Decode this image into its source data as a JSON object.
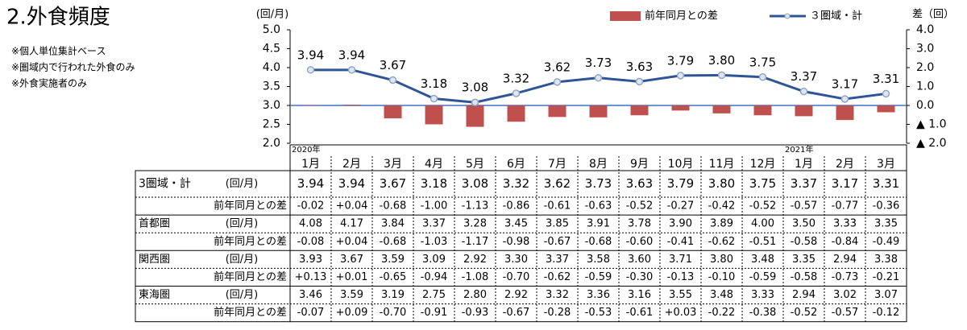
{
  "header": {
    "title": "2.外食頻度",
    "notes": [
      "※個人単位集計ベース",
      "※圏域内で行われた外食のみ",
      "※外食実施者のみ"
    ]
  },
  "chart_data": {
    "type": "bar-line",
    "ylabel": "(回/月)",
    "y2label": "差（回）",
    "categories": [
      "1月",
      "2月",
      "3月",
      "4月",
      "5月",
      "6月",
      "7月",
      "8月",
      "9月",
      "10月",
      "11月",
      "12月",
      "1月",
      "2月",
      "3月"
    ],
    "x_groups": [
      {
        "label": "2020年",
        "start": 0
      },
      {
        "label": "2021年",
        "start": 12
      }
    ],
    "ylim": [
      2.0,
      5.0
    ],
    "yticks": [
      {
        "value": 2.0,
        "label": "2.0"
      },
      {
        "value": 2.5,
        "label": "2.5"
      },
      {
        "value": 3.0,
        "label": "3.0"
      },
      {
        "value": 3.5,
        "label": "3.5"
      },
      {
        "value": 4.0,
        "label": "4.0"
      },
      {
        "value": 4.5,
        "label": "4.5"
      },
      {
        "value": 5.0,
        "label": "5.0"
      }
    ],
    "y2lim": [
      -2.0,
      4.0
    ],
    "y2ticks": [
      {
        "value": -2.0,
        "label": "▲ 2.0"
      },
      {
        "value": -1.0,
        "label": "▲ 1.0"
      },
      {
        "value": 0,
        "label": "0.0"
      },
      {
        "value": 1.0,
        "label": "1.0"
      },
      {
        "value": 2.0,
        "label": "2.0"
      },
      {
        "value": 3.0,
        "label": "3.0"
      },
      {
        "value": 4.0,
        "label": "4.0"
      }
    ],
    "legend": "top-right",
    "series": [
      {
        "name": "前年同月との差",
        "type": "bar",
        "axis": "y2",
        "color": "#c0504d",
        "values": [
          -0.02,
          0.04,
          -0.68,
          -1.0,
          -1.13,
          -0.86,
          -0.61,
          -0.63,
          -0.52,
          -0.27,
          -0.42,
          -0.52,
          -0.57,
          -0.77,
          -0.36
        ]
      },
      {
        "name": "３圏域・計",
        "type": "line",
        "axis": "y",
        "color": "#2f5597",
        "values": [
          3.94,
          3.94,
          3.67,
          3.18,
          3.08,
          3.32,
          3.62,
          3.73,
          3.63,
          3.79,
          3.8,
          3.75,
          3.37,
          3.17,
          3.31
        ],
        "value_labels": [
          "3.94",
          "3.94",
          "3.67",
          "3.18",
          "3.08",
          "3.32",
          "3.62",
          "3.73",
          "3.63",
          "3.79",
          "3.80",
          "3.75",
          "3.37",
          "3.17",
          "3.31"
        ]
      }
    ]
  },
  "table": {
    "rows": [
      {
        "label": "3圏域・計",
        "unit": "(回/月)",
        "values": [
          "3.94",
          "3.94",
          "3.67",
          "3.18",
          "3.08",
          "3.32",
          "3.62",
          "3.73",
          "3.63",
          "3.79",
          "3.80",
          "3.75",
          "3.37",
          "3.17",
          "3.31"
        ]
      },
      {
        "label": "前年同月との差",
        "values": [
          "-0.02",
          "+0.04",
          "-0.68",
          "-1.00",
          "-1.13",
          "-0.86",
          "-0.61",
          "-0.63",
          "-0.52",
          "-0.27",
          "-0.42",
          "-0.52",
          "-0.57",
          "-0.77",
          "-0.36"
        ]
      },
      {
        "label": "首都圏",
        "unit": "(回/月)",
        "values": [
          "4.08",
          "4.17",
          "3.84",
          "3.37",
          "3.28",
          "3.45",
          "3.85",
          "3.91",
          "3.78",
          "3.90",
          "3.89",
          "4.00",
          "3.50",
          "3.33",
          "3.35"
        ]
      },
      {
        "label": "前年同月との差",
        "values": [
          "-0.08",
          "+0.04",
          "-0.68",
          "-1.03",
          "-1.17",
          "-0.98",
          "-0.67",
          "-0.68",
          "-0.60",
          "-0.41",
          "-0.62",
          "-0.51",
          "-0.58",
          "-0.84",
          "-0.49"
        ]
      },
      {
        "label": "関西圏",
        "unit": "(回/月)",
        "values": [
          "3.93",
          "3.67",
          "3.59",
          "3.09",
          "2.92",
          "3.30",
          "3.37",
          "3.58",
          "3.60",
          "3.71",
          "3.80",
          "3.48",
          "3.35",
          "2.94",
          "3.38"
        ]
      },
      {
        "label": "前年同月との差",
        "values": [
          "+0.13",
          "+0.01",
          "-0.65",
          "-0.94",
          "-1.08",
          "-0.70",
          "-0.62",
          "-0.59",
          "-0.30",
          "-0.13",
          "-0.10",
          "-0.59",
          "-0.58",
          "-0.73",
          "-0.21"
        ]
      },
      {
        "label": "東海圏",
        "unit": "(回/月)",
        "values": [
          "3.46",
          "3.59",
          "3.19",
          "2.75",
          "2.80",
          "2.92",
          "3.32",
          "3.36",
          "3.16",
          "3.55",
          "3.48",
          "3.33",
          "2.94",
          "3.02",
          "3.07"
        ]
      },
      {
        "label": "前年同月との差",
        "values": [
          "-0.07",
          "+0.09",
          "-0.70",
          "-0.91",
          "-0.93",
          "-0.67",
          "-0.28",
          "-0.53",
          "-0.61",
          "+0.03",
          "-0.22",
          "-0.38",
          "-0.52",
          "-0.57",
          "-0.12"
        ]
      }
    ]
  }
}
